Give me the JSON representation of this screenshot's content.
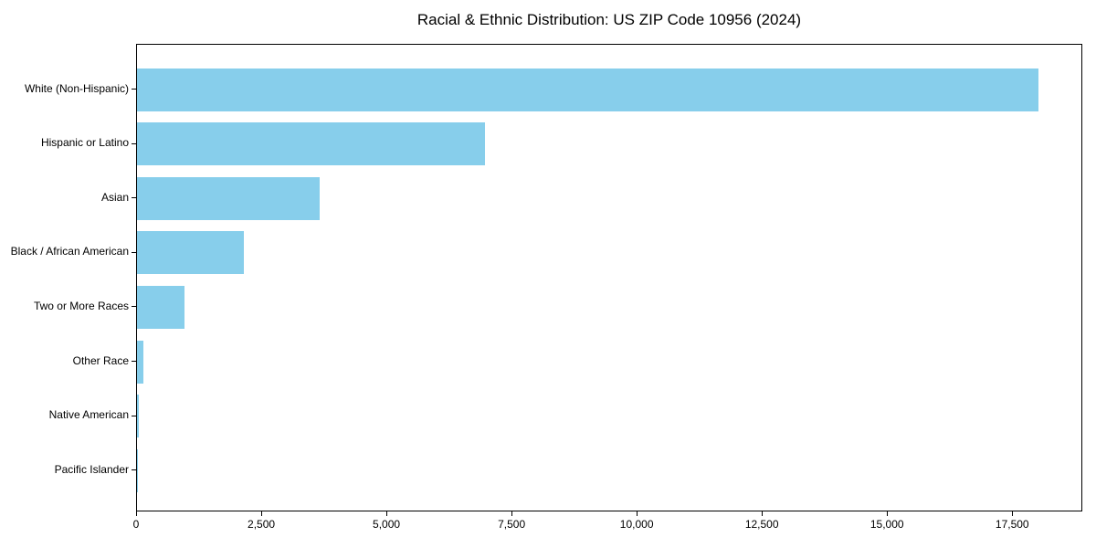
{
  "chart_data": {
    "type": "bar",
    "orientation": "horizontal",
    "title": "Racial & Ethnic Distribution: US ZIP Code 10956 (2024)",
    "categories": [
      "White (Non-Hispanic)",
      "Hispanic or Latino",
      "Asian",
      "Black / African American",
      "Two or More Races",
      "Other Race",
      "Native American",
      "Pacific Islander"
    ],
    "values": [
      18000,
      6950,
      3650,
      2140,
      940,
      130,
      30,
      10
    ],
    "xlabel": "",
    "ylabel": "",
    "xlim": [
      0,
      18900
    ],
    "x_ticks": [
      0,
      2500,
      5000,
      7500,
      10000,
      12500,
      15000,
      17500
    ],
    "x_tick_labels": [
      "0",
      "2,500",
      "5,000",
      "7,500",
      "10,000",
      "12,500",
      "15,000",
      "17,500"
    ],
    "bar_color": "#87CEEB",
    "background_color": "#FFFFFF",
    "spine_color": "#000000",
    "grid": false,
    "legend": "none"
  }
}
